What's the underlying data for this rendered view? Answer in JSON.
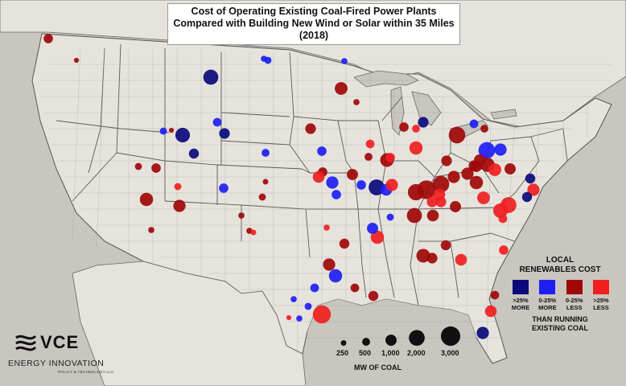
{
  "title": {
    "line1": "Cost of Operating Existing Coal-Fired Power Plants",
    "line2": "Compared with Building New Wind or Solar within 35 Miles (2018)"
  },
  "legend": {
    "title_line1": "LOCAL",
    "title_line2": "RENEWABLES COST",
    "categories": [
      {
        "key": "dark_blue",
        "label_line1": ">25%",
        "label_line2": "MORE",
        "color": "#0a0a7a"
      },
      {
        "key": "blue",
        "label_line1": "0-25%",
        "label_line2": "MORE",
        "color": "#1e1ef5"
      },
      {
        "key": "dark_red",
        "label_line1": "0-25%",
        "label_line2": "LESS",
        "color": "#a00808"
      },
      {
        "key": "red",
        "label_line1": ">25%",
        "label_line2": "LESS",
        "color": "#f02020"
      }
    ],
    "footer_line1": "THAN RUNNING",
    "footer_line2": "EXISTING COAL"
  },
  "size_legend": {
    "values": [
      "250",
      "500",
      "1,000",
      "2,000",
      "3,000"
    ],
    "mw": [
      250,
      500,
      1000,
      2000,
      3000
    ],
    "title": "MW OF COAL"
  },
  "logo": {
    "name": "VCE",
    "subtitle": "ENERGY INNOVATION",
    "tagline": "POLICY & TECHNOLOGY LLC"
  },
  "colors": {
    "land": "#e6e3dd",
    "water": "#c9c6c0",
    "border": "#666666"
  },
  "plants": [
    {
      "mw": 700,
      "cat": "dark_red"
    },
    {
      "mw": 200,
      "cat": "dark_red"
    },
    {
      "mw": 300,
      "cat": "blue"
    },
    {
      "mw": 400,
      "cat": "blue"
    },
    {
      "mw": 300,
      "cat": "blue"
    },
    {
      "mw": 1800,
      "cat": "dark_blue"
    },
    {
      "mw": 1300,
      "cat": "dark_red"
    },
    {
      "mw": 300,
      "cat": "dark_red"
    },
    {
      "mw": 1700,
      "cat": "dark_blue"
    },
    {
      "mw": 900,
      "cat": "dark_blue"
    },
    {
      "mw": 400,
      "cat": "blue"
    },
    {
      "mw": 800,
      "cat": "dark_blue"
    },
    {
      "mw": 700,
      "cat": "dark_red"
    },
    {
      "mw": 400,
      "cat": "dark_red"
    },
    {
      "mw": 1400,
      "cat": "dark_red"
    },
    {
      "mw": 1200,
      "cat": "dark_red"
    },
    {
      "mw": 700,
      "cat": "blue"
    },
    {
      "mw": 600,
      "cat": "blue"
    },
    {
      "mw": 500,
      "cat": "blue"
    },
    {
      "mw": 700,
      "cat": "blue"
    },
    {
      "mw": 900,
      "cat": "dark_red"
    },
    {
      "mw": 700,
      "cat": "dark_red"
    },
    {
      "mw": 1100,
      "cat": "red"
    },
    {
      "mw": 900,
      "cat": "dark_blue"
    },
    {
      "mw": 700,
      "cat": "dark_red"
    },
    {
      "mw": 2200,
      "cat": "dark_red"
    },
    {
      "mw": 1500,
      "cat": "dark_red"
    },
    {
      "mw": 1400,
      "cat": "red"
    },
    {
      "mw": 2200,
      "cat": "blue"
    },
    {
      "mw": 1200,
      "cat": "blue"
    },
    {
      "mw": 1600,
      "cat": "dark_red"
    },
    {
      "mw": 1000,
      "cat": "dark_red"
    },
    {
      "mw": 2000,
      "cat": "dark_blue"
    },
    {
      "mw": 1100,
      "cat": "blue"
    },
    {
      "mw": 1200,
      "cat": "red"
    },
    {
      "mw": 2100,
      "cat": "dark_red"
    },
    {
      "mw": 2800,
      "cat": "dark_red"
    },
    {
      "mw": 2200,
      "cat": "dark_red"
    },
    {
      "mw": 1200,
      "cat": "dark_red"
    },
    {
      "mw": 1200,
      "cat": "dark_red"
    },
    {
      "mw": 900,
      "cat": "dark_red"
    },
    {
      "mw": 1000,
      "cat": "dark_red"
    },
    {
      "mw": 1300,
      "cat": "red"
    },
    {
      "mw": 1000,
      "cat": "dark_red"
    },
    {
      "mw": 800,
      "cat": "dark_blue"
    },
    {
      "mw": 1200,
      "cat": "red"
    },
    {
      "mw": 1400,
      "cat": "dark_red"
    },
    {
      "mw": 1100,
      "cat": "red"
    },
    {
      "mw": 1300,
      "cat": "red"
    },
    {
      "mw": 900,
      "cat": "red"
    },
    {
      "mw": 1000,
      "cat": "dark_red"
    },
    {
      "mw": 900,
      "cat": "red"
    },
    {
      "mw": 1800,
      "cat": "dark_red"
    },
    {
      "mw": 1100,
      "cat": "dark_red"
    },
    {
      "mw": 2000,
      "cat": "red"
    },
    {
      "mw": 1700,
      "cat": "red"
    },
    {
      "mw": 1500,
      "cat": "dark_red"
    },
    {
      "mw": 700,
      "cat": "blue"
    },
    {
      "mw": 1200,
      "cat": "blue"
    },
    {
      "mw": 1000,
      "cat": "dark_red"
    },
    {
      "mw": 1400,
      "cat": "blue"
    },
    {
      "mw": 600,
      "cat": "blue"
    },
    {
      "mw": 600,
      "cat": "dark_red"
    },
    {
      "mw": 800,
      "cat": "dark_red"
    },
    {
      "mw": 1200,
      "cat": "dark_red"
    },
    {
      "mw": 2600,
      "cat": "red"
    },
    {
      "mw": 400,
      "cat": "blue"
    },
    {
      "mw": 800,
      "cat": "dark_red"
    },
    {
      "mw": 1400,
      "cat": "red"
    },
    {
      "mw": 1200,
      "cat": "dark_blue"
    },
    {
      "mw": 800,
      "cat": "dark_red"
    },
    {
      "mw": 1100,
      "cat": "red"
    },
    {
      "mw": 1100,
      "cat": "red"
    },
    {
      "mw": 700,
      "cat": "red"
    },
    {
      "mw": 600,
      "cat": "dark_red"
    },
    {
      "mw": 900,
      "cat": "dark_red"
    },
    {
      "mw": 600,
      "cat": "red"
    },
    {
      "mw": 1000,
      "cat": "blue"
    },
    {
      "mw": 700,
      "cat": "red"
    },
    {
      "mw": 500,
      "cat": "dark_red"
    },
    {
      "mw": 800,
      "cat": "dark_blue"
    },
    {
      "mw": 900,
      "cat": "dark_red"
    },
    {
      "mw": 700,
      "cat": "blue"
    },
    {
      "mw": 600,
      "cat": "red"
    },
    {
      "mw": 500,
      "cat": "red"
    },
    {
      "mw": 500,
      "cat": "dark_red"
    },
    {
      "mw": 600,
      "cat": "blue"
    },
    {
      "mw": 300,
      "cat": "red"
    },
    {
      "mw": 300,
      "cat": "dark_red"
    },
    {
      "mw": 400,
      "cat": "dark_red"
    },
    {
      "mw": 400,
      "cat": "blue"
    },
    {
      "mw": 300,
      "cat": "blue"
    },
    {
      "mw": 200,
      "cat": "red"
    },
    {
      "mw": 250,
      "cat": "dark_red"
    },
    {
      "mw": 250,
      "cat": "red"
    },
    {
      "mw": 300,
      "cat": "dark_red"
    },
    {
      "mw": 300,
      "cat": "blue"
    },
    {
      "mw": 200,
      "cat": "dark_red"
    },
    {
      "mw": 400,
      "cat": "red"
    },
    {
      "mw": 300,
      "cat": "dark_red"
    }
  ]
}
